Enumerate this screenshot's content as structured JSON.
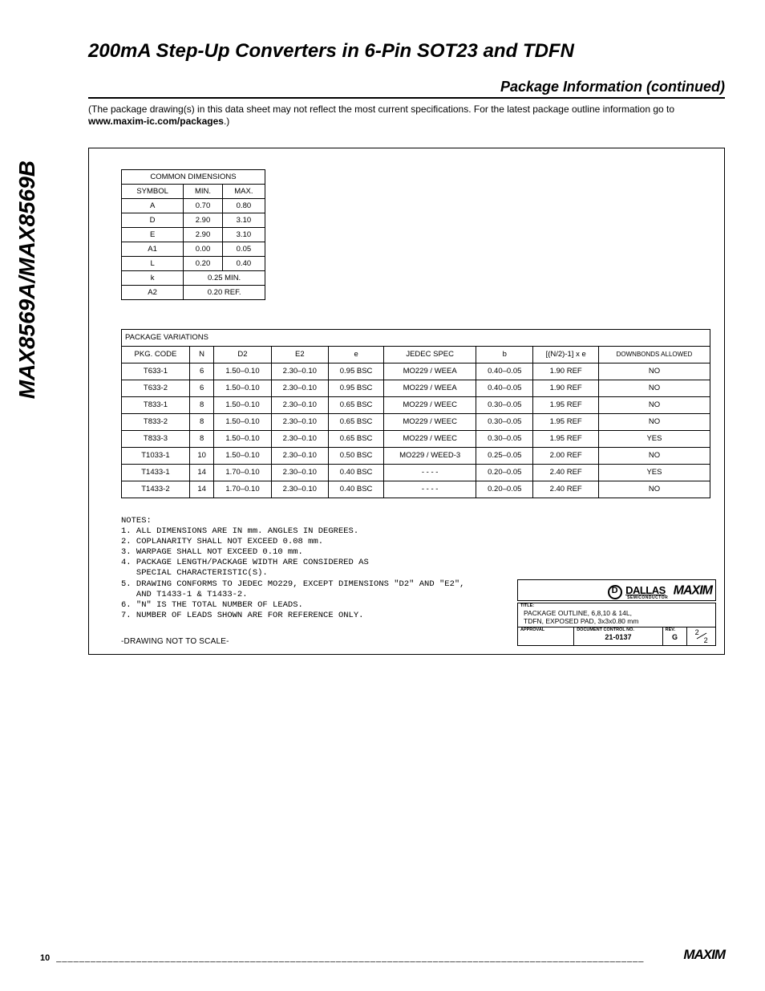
{
  "meta": {
    "part_number": "MAX8569A/MAX8569B",
    "title": "200mA Step-Up Converters in 6-Pin SOT23 and TDFN",
    "section": "Package Information (continued)",
    "intro_text_a": "(The package drawing(s) in this data sheet may not reflect the most current specifications. For the latest package outline information go to ",
    "intro_link_text": "www.maxim-ic.com/packages",
    "intro_text_b": ".)"
  },
  "common_dimensions": {
    "caption": "COMMON DIMENSIONS",
    "headers": [
      "SYMBOL",
      "MIN.",
      "MAX."
    ],
    "rows": [
      [
        "A",
        "0.70",
        "0.80"
      ],
      [
        "D",
        "2.90",
        "3.10"
      ],
      [
        "E",
        "2.90",
        "3.10"
      ],
      [
        "A1",
        "0.00",
        "0.05"
      ],
      [
        "L",
        "0.20",
        "0.40"
      ]
    ],
    "spans": [
      [
        "k",
        "0.25 MIN."
      ],
      [
        "A2",
        "0.20 REF."
      ]
    ]
  },
  "variations": {
    "caption": "PACKAGE VARIATIONS",
    "headers": [
      "PKG. CODE",
      "N",
      "D2",
      "E2",
      "e",
      "JEDEC SPEC",
      "b",
      "[(N/2)-1] x e",
      "DOWNBONDS ALLOWED"
    ],
    "rows": [
      [
        "T633-1",
        "6",
        "1.50–0.10",
        "2.30–0.10",
        "0.95 BSC",
        "MO229 / WEEA",
        "0.40–0.05",
        "1.90 REF",
        "NO"
      ],
      [
        "T633-2",
        "6",
        "1.50–0.10",
        "2.30–0.10",
        "0.95 BSC",
        "MO229 / WEEA",
        "0.40–0.05",
        "1.90 REF",
        "NO"
      ],
      [
        "T833-1",
        "8",
        "1.50–0.10",
        "2.30–0.10",
        "0.65 BSC",
        "MO229 / WEEC",
        "0.30–0.05",
        "1.95 REF",
        "NO"
      ],
      [
        "T833-2",
        "8",
        "1.50–0.10",
        "2.30–0.10",
        "0.65 BSC",
        "MO229 / WEEC",
        "0.30–0.05",
        "1.95 REF",
        "NO"
      ],
      [
        "T833-3",
        "8",
        "1.50–0.10",
        "2.30–0.10",
        "0.65 BSC",
        "MO229 / WEEC",
        "0.30–0.05",
        "1.95 REF",
        "YES"
      ],
      [
        "T1033-1",
        "10",
        "1.50–0.10",
        "2.30–0.10",
        "0.50 BSC",
        "MO229 / WEED-3",
        "0.25–0.05",
        "2.00 REF",
        "NO"
      ],
      [
        "T1433-1",
        "14",
        "1.70–0.10",
        "2.30–0.10",
        "0.40 BSC",
        "- - - -",
        "0.20–0.05",
        "2.40 REF",
        "YES"
      ],
      [
        "T1433-2",
        "14",
        "1.70–0.10",
        "2.30–0.10",
        "0.40 BSC",
        "- - - -",
        "0.20–0.05",
        "2.40 REF",
        "NO"
      ]
    ]
  },
  "notes": {
    "heading": "NOTES:",
    "lines": [
      "1. ALL DIMENSIONS ARE IN mm. ANGLES IN DEGREES.",
      "2. COPLANARITY SHALL NOT EXCEED 0.08 mm.",
      "3. WARPAGE SHALL NOT EXCEED 0.10 mm.",
      "4. PACKAGE LENGTH/PACKAGE WIDTH ARE CONSIDERED AS",
      "   SPECIAL CHARACTERISTIC(S).",
      "5. DRAWING CONFORMS TO JEDEC MO229, EXCEPT DIMENSIONS \"D2\" AND \"E2\",",
      "   AND T1433-1 & T1433-2.",
      "6. \"N\" IS THE TOTAL NUMBER OF LEADS.",
      "7. NUMBER OF LEADS SHOWN ARE FOR REFERENCE ONLY."
    ],
    "scale_note": "-DRAWING NOT TO SCALE-"
  },
  "title_block": {
    "dallas": "DALLAS",
    "dallas_sub": "SEMICONDUCTOR",
    "maxim": "MAXIM",
    "title_label": "TITLE:",
    "title_line1": "PACKAGE OUTLINE, 6,8,10 & 14L,",
    "title_line2": "TDFN, EXPOSED PAD, 3x3x0.80 mm",
    "approval_label": "APPROVAL",
    "doc_label": "DOCUMENT CONTROL NO.",
    "doc_no": "21-0137",
    "rev_label": "REV.",
    "rev": "G",
    "sheet_n": "2",
    "sheet_d": "2"
  },
  "footer": {
    "page": "10",
    "maxim": "MAXIM"
  }
}
